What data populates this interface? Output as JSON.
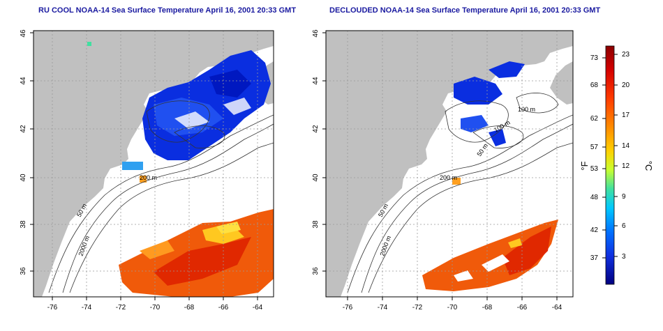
{
  "left_panel": {
    "title": "RU COOL NOAA-14 Sea Surface Temperature April 16, 2001 20:33 GMT",
    "contour_labels": [
      "200 m",
      "50 m",
      "2000 m"
    ]
  },
  "right_panel": {
    "title": "DECLOUDED NOAA-14 Sea Surface Temperature April 16, 2001 20:33 GMT",
    "contour_labels": [
      "100 m",
      "50 m",
      "100 m",
      "200 m",
      "50 m",
      "2000 m"
    ]
  },
  "axes": {
    "x_ticks": [
      "-76",
      "-74",
      "-72",
      "-70",
      "-68",
      "-66",
      "-64"
    ],
    "y_ticks": [
      "36",
      "38",
      "40",
      "42",
      "44",
      "46"
    ]
  },
  "colorbar": {
    "f_label": "°F",
    "c_label": "°C",
    "f_ticks": [
      "73",
      "68",
      "62",
      "57",
      "53",
      "48",
      "42",
      "37"
    ],
    "c_ticks": [
      "23",
      "20",
      "17",
      "14",
      "12",
      "9",
      "6",
      "3"
    ],
    "colors": [
      "#8b0000",
      "#d40000",
      "#ff3b00",
      "#ff8c00",
      "#ffd000",
      "#c8ff30",
      "#40e0a0",
      "#00c8ff",
      "#0070ff",
      "#1030e0",
      "#000080"
    ]
  },
  "colors": {
    "land": "#c0c0c0",
    "ocean": "#ffffff",
    "cold": "#0a2ee0",
    "warm": "#f05a0a",
    "title": "#1a1aa0"
  }
}
